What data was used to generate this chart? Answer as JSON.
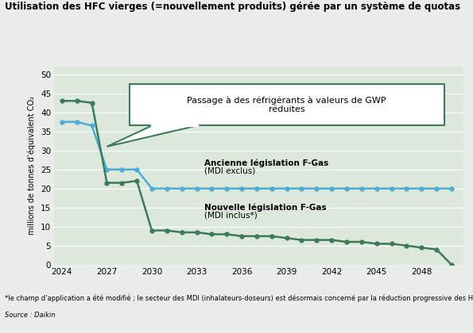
{
  "title": "Utilisation des HFC vierges (=nouvellement produits) gérée par un système de quotas",
  "ylabel": "millions de tonnes d’équivalent CO₂",
  "background_color": "#eaeeea",
  "plot_bg_color": "#dde8dc",
  "blue_color": "#4bacd6",
  "green_color": "#3d7a5a",
  "blue_years": [
    2024,
    2025,
    2026,
    2027,
    2028,
    2029,
    2030,
    2031,
    2032,
    2033,
    2034,
    2035,
    2036,
    2037,
    2038,
    2039,
    2040,
    2041,
    2042,
    2043,
    2044,
    2045,
    2046,
    2047,
    2048,
    2049,
    2050
  ],
  "blue_values": [
    37.5,
    37.5,
    36.5,
    25.0,
    25.0,
    25.0,
    20.0,
    20.0,
    20.0,
    20.0,
    20.0,
    20.0,
    20.0,
    20.0,
    20.0,
    20.0,
    20.0,
    20.0,
    20.0,
    20.0,
    20.0,
    20.0,
    20.0,
    20.0,
    20.0,
    20.0,
    20.0
  ],
  "green_years": [
    2024,
    2025,
    2026,
    2027,
    2028,
    2029,
    2030,
    2031,
    2032,
    2033,
    2034,
    2035,
    2036,
    2037,
    2038,
    2039,
    2040,
    2041,
    2042,
    2043,
    2044,
    2045,
    2046,
    2047,
    2048,
    2049,
    2050
  ],
  "green_values": [
    43.0,
    43.0,
    42.5,
    21.5,
    21.5,
    22.0,
    9.0,
    9.0,
    8.5,
    8.5,
    8.0,
    8.0,
    7.5,
    7.5,
    7.5,
    7.0,
    6.5,
    6.5,
    6.5,
    6.0,
    6.0,
    5.5,
    5.5,
    5.0,
    4.5,
    4.0,
    0.0
  ],
  "xlim": [
    2023.5,
    2050.8
  ],
  "ylim": [
    0,
    52
  ],
  "xticks": [
    2024,
    2027,
    2030,
    2033,
    2036,
    2039,
    2042,
    2045,
    2048
  ],
  "yticks": [
    0,
    5,
    10,
    15,
    20,
    25,
    30,
    35,
    40,
    45,
    50
  ],
  "label_blue_line1": "Ancienne législation F-Gas",
  "label_blue_line2": "(MDI exclus)",
  "label_green_line1": "Nouvelle législation F-Gas",
  "label_green_line2": "(MDI inclus*)",
  "callout_text": "Passage à des réfrigérants à valeurs de GWP\nréduites",
  "footnote1": "*le champ d’application a été modifié ; le secteur des MDI (inhalateurs-doseurs) est désormais concerné par la réduction progressive des HFC",
  "footnote2": "Source : Daikin"
}
